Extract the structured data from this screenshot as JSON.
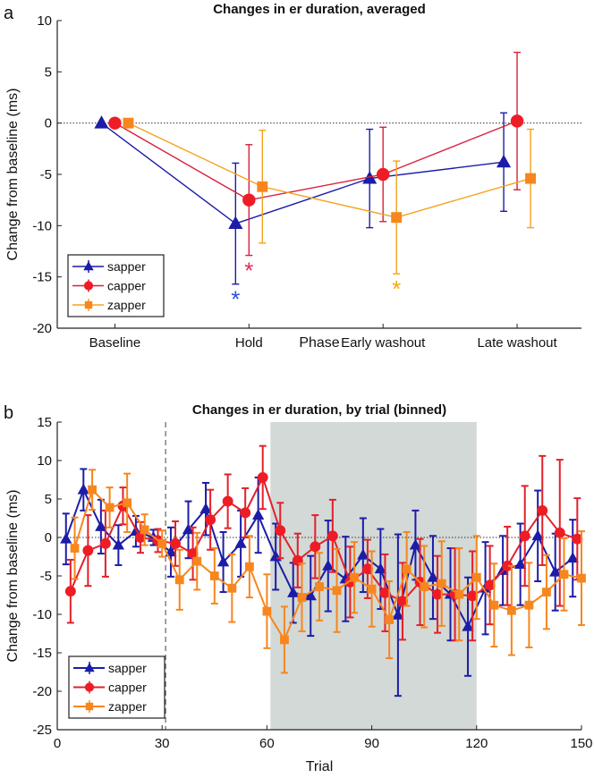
{
  "chart_data": [
    {
      "panel_label": "a",
      "type": "line",
      "title": "Changes in er duration, averaged",
      "xlabel": "Phase",
      "ylabel": "Change from baseline (ms)",
      "categories": [
        "Baseline",
        "Hold",
        "Early washout",
        "Late washout"
      ],
      "ylim": [
        -20,
        10
      ],
      "yticks": [
        "10",
        "5",
        "0",
        "-5",
        "-10",
        "-15",
        "-20"
      ],
      "ytick_values": [
        10,
        5,
        0,
        -5,
        -10,
        -15,
        -20
      ],
      "reference_line": 0,
      "legend_position": "bottom-left",
      "series": [
        {
          "name": "sapper",
          "color": "#1c1ca8",
          "marker": "triangle",
          "values": [
            0,
            -9.8,
            -5.4,
            -3.8
          ],
          "errors": [
            0,
            5.9,
            4.8,
            4.8
          ],
          "significant": [
            false,
            true,
            false,
            false
          ],
          "star_color": "#2a4de6"
        },
        {
          "name": "capper",
          "color": "#d8203a",
          "marker_color": "#ee1c25",
          "marker": "circle",
          "values": [
            0,
            -7.5,
            -5.0,
            0.2
          ],
          "errors": [
            0,
            5.4,
            4.6,
            6.7
          ],
          "significant": [
            false,
            true,
            false,
            false
          ],
          "star_color": "#e8285a"
        },
        {
          "name": "zapper",
          "color": "#f5a21c",
          "marker_color": "#f7861e",
          "marker": "square",
          "values": [
            0,
            -6.2,
            -9.2,
            -5.4
          ],
          "errors": [
            0,
            5.5,
            5.5,
            4.8
          ],
          "significant": [
            false,
            false,
            true,
            false
          ],
          "star_color": "#f5a80f"
        }
      ],
      "significance_marker": "*"
    },
    {
      "panel_label": "b",
      "type": "line",
      "title": "Changes in er duration, by trial (binned)",
      "xlabel": "Trial",
      "ylabel": "Change from baseline (ms)",
      "xlim": [
        0,
        150
      ],
      "xticks": [
        "0",
        "30",
        "60",
        "90",
        "120",
        "150"
      ],
      "xtick_values": [
        0,
        30,
        60,
        90,
        120,
        150
      ],
      "ylim": [
        -25,
        15
      ],
      "yticks": [
        "15",
        "10",
        "5",
        "0",
        "-5",
        "-10",
        "-15",
        "-20",
        "-25"
      ],
      "ytick_values": [
        15,
        10,
        5,
        0,
        -5,
        -10,
        -15,
        -20,
        -25
      ],
      "reference_line": 0,
      "dashed_line_trial": 31,
      "shaded_region": [
        61,
        120
      ],
      "shade_color": "#d3d9d6",
      "bin_width": 5,
      "legend_position": "bottom-left",
      "series": [
        {
          "name": "sapper",
          "color": "#1c1ca8",
          "marker": "triangle",
          "x_offset": 2.5,
          "values": [
            -0.2,
            6.2,
            1.4,
            -1.0,
            0.8,
            0.0,
            -1.9,
            1.0,
            3.7,
            -3.2,
            -0.8,
            2.9,
            -2.5,
            -7.2,
            -7.6,
            -3.7,
            -5.4,
            -2.3,
            -4.1,
            -10.1,
            -1.0,
            -5.2,
            -7.4,
            -11.6,
            -6.6,
            -4.3,
            -3.5,
            0.2,
            -4.5,
            -2.7
          ],
          "errors": [
            3.3,
            2.7,
            3.5,
            2.6,
            2.0,
            1.0,
            3.2,
            3.7,
            3.4,
            3.9,
            4.3,
            4.9,
            4.3,
            3.9,
            5.2,
            5.9,
            5.5,
            4.8,
            5.2,
            10.5,
            4.5,
            5.4,
            6.0,
            6.4,
            6.0,
            4.5,
            5.3,
            5.9,
            5.0,
            5.0
          ]
        },
        {
          "name": "capper",
          "color": "#e3202a",
          "marker_color": "#ee1c25",
          "marker": "circle",
          "x_offset": 3.8,
          "values": [
            -7.0,
            -1.7,
            -0.8,
            4.1,
            0.0,
            -0.4,
            -0.8,
            -2.1,
            2.3,
            4.7,
            3.2,
            7.8,
            0.9,
            -3.0,
            -1.2,
            0.2,
            -5.8,
            -4.1,
            -7.2,
            -8.3,
            -5.8,
            -7.4,
            -7.4,
            -7.6,
            -6.2,
            -3.7,
            0.2,
            3.5,
            0.6,
            -0.2
          ],
          "errors": [
            4.1,
            4.6,
            4.3,
            2.4,
            2.0,
            1.5,
            2.9,
            3.4,
            3.9,
            3.5,
            3.2,
            4.1,
            3.6,
            3.5,
            4.1,
            4.7,
            4.6,
            3.8,
            5.0,
            5.0,
            5.6,
            5.0,
            6.0,
            5.8,
            5.1,
            5.1,
            6.5,
            7.1,
            9.5,
            5.3
          ]
        },
        {
          "name": "zapper",
          "color": "#f7861e",
          "marker_color": "#f7861e",
          "marker": "square",
          "x_offset": 5.0,
          "values": [
            -1.4,
            6.2,
            3.9,
            4.5,
            1.0,
            -0.8,
            -5.5,
            -3.1,
            -5.0,
            -6.6,
            -3.8,
            -9.6,
            -13.3,
            -7.8,
            -6.4,
            -6.9,
            -5.2,
            -6.7,
            -10.7,
            -4.1,
            -6.4,
            -6.0,
            -7.4,
            -5.2,
            -8.8,
            -9.5,
            -8.8,
            -7.1,
            -4.8,
            -5.3
          ],
          "errors": [
            4.0,
            2.6,
            2.6,
            3.8,
            2.0,
            1.7,
            3.9,
            3.7,
            3.6,
            4.4,
            4.0,
            4.8,
            4.3,
            4.4,
            4.4,
            5.4,
            4.6,
            4.9,
            5.0,
            4.8,
            5.3,
            5.5,
            6.0,
            5.4,
            5.4,
            5.8,
            5.5,
            4.8,
            4.7,
            6.1
          ]
        }
      ]
    }
  ]
}
